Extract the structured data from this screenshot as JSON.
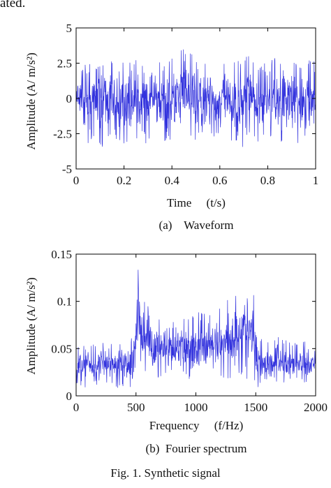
{
  "top_fragment": "ated.",
  "figure_caption": "Fig. 1.  Synthetic signal",
  "chart_data": [
    {
      "type": "line",
      "subcaption": "(a)    Waveform",
      "xlabel": "Time     (t/s)",
      "ylabel": "Amplitude    (A/ m/s²)",
      "xlim": [
        0,
        1
      ],
      "ylim": [
        -5,
        5
      ],
      "xticks": [
        0,
        0.2,
        0.4,
        0.6,
        0.8,
        1
      ],
      "xtick_labels": [
        "0",
        "0.2",
        "0.4",
        "0.6",
        "0.8",
        "1"
      ],
      "yticks": [
        5,
        2.5,
        0,
        -2.5,
        -5
      ],
      "ytick_labels": [
        "5",
        "2.5",
        "0",
        "-2.5",
        "-5"
      ],
      "grid": false,
      "series": [
        {
          "color": "#3333dd",
          "x": [
            0,
            0.0256,
            0.0513,
            0.0769,
            0.1026,
            0.1282,
            0.1538,
            0.1795,
            0.2051,
            0.2308,
            0.2564,
            0.2821,
            0.3077,
            0.3333,
            0.359,
            0.3846,
            0.4103,
            0.4359,
            0.4615,
            0.4872,
            0.5128,
            0.5385,
            0.5641,
            0.5897,
            0.6154,
            0.641,
            0.6667,
            0.6923,
            0.7179,
            0.7436,
            0.7692,
            0.7949,
            0.8205,
            0.8462,
            0.8718,
            0.8974,
            0.9231,
            0.9487,
            0.9744,
            1
          ],
          "upper": [
            1.8,
            2.3,
            2.6,
            1.9,
            2.9,
            2.4,
            2.7,
            2.0,
            3.1,
            2.6,
            2.9,
            2.2,
            2.7,
            3.0,
            2.5,
            3.2,
            2.8,
            3.5,
            4.0,
            3.1,
            2.8,
            2.7,
            3.2,
            2.4,
            2.9,
            2.2,
            3.0,
            2.6,
            3.3,
            2.9,
            2.5,
            3.0,
            2.8,
            3.1,
            2.4,
            2.9,
            2.7,
            2.3,
            2.9,
            2.6
          ],
          "lower": [
            -2.0,
            -2.8,
            -3.4,
            -2.6,
            -3.7,
            -3.0,
            -2.7,
            -3.3,
            -3.5,
            -2.8,
            -2.9,
            -3.6,
            -3.0,
            -2.6,
            -3.2,
            -3.4,
            -3.1,
            -3.5,
            -2.9,
            -3.3,
            -2.5,
            -3.0,
            -3.4,
            -3.6,
            -2.9,
            -3.1,
            -3.3,
            -3.8,
            -2.8,
            -3.0,
            -3.2,
            -2.7,
            -3.1,
            -3.6,
            -2.9,
            -3.0,
            -3.2,
            -2.8,
            -3.1,
            -2.9
          ]
        }
      ]
    },
    {
      "type": "line",
      "subcaption": "(b)  Fourier spectrum",
      "xlabel": "Frequency     (f/Hz)",
      "ylabel": "Amplitude    (A/ m/s²)",
      "xlim": [
        0,
        2000
      ],
      "ylim": [
        0,
        0.15
      ],
      "xticks": [
        0,
        500,
        1000,
        1500,
        2000
      ],
      "xtick_labels": [
        "0",
        "500",
        "1000",
        "1500",
        "2000"
      ],
      "yticks": [
        0.15,
        0.1,
        0.05,
        0
      ],
      "ytick_labels": [
        "0.15",
        "0.1",
        "0.05",
        "0"
      ],
      "grid": false,
      "series": [
        {
          "color": "#3333dd",
          "x": [
            0,
            50,
            100,
            150,
            200,
            250,
            300,
            350,
            400,
            450,
            480,
            500,
            520,
            540,
            560,
            600,
            650,
            700,
            750,
            800,
            850,
            900,
            950,
            1000,
            1050,
            1100,
            1150,
            1200,
            1250,
            1300,
            1350,
            1400,
            1450,
            1480,
            1500,
            1520,
            1550,
            1600,
            1650,
            1700,
            1750,
            1800,
            1850,
            1900,
            1950,
            2000
          ],
          "upper": [
            0.048,
            0.062,
            0.058,
            0.055,
            0.06,
            0.058,
            0.057,
            0.054,
            0.059,
            0.056,
            0.07,
            0.1,
            0.14,
            0.125,
            0.105,
            0.1,
            0.085,
            0.082,
            0.08,
            0.078,
            0.083,
            0.085,
            0.082,
            0.088,
            0.09,
            0.086,
            0.092,
            0.095,
            0.1,
            0.105,
            0.115,
            0.12,
            0.118,
            0.125,
            0.08,
            0.065,
            0.06,
            0.058,
            0.06,
            0.063,
            0.06,
            0.057,
            0.055,
            0.06,
            0.052,
            0.05
          ],
          "lower": [
            0.005,
            0.008,
            0.01,
            0.007,
            0.012,
            0.009,
            0.011,
            0.008,
            0.01,
            0.009,
            0.02,
            0.03,
            0.035,
            0.03,
            0.025,
            0.02,
            0.015,
            0.018,
            0.014,
            0.016,
            0.017,
            0.015,
            0.016,
            0.014,
            0.018,
            0.02,
            0.015,
            0.017,
            0.019,
            0.016,
            0.02,
            0.018,
            0.015,
            0.02,
            0.01,
            0.008,
            0.009,
            0.01,
            0.009,
            0.011,
            0.008,
            0.01,
            0.009,
            0.011,
            0.012,
            0.01
          ]
        }
      ]
    }
  ]
}
